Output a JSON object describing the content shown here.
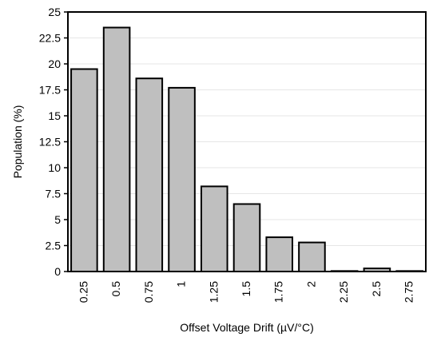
{
  "chart_data": {
    "type": "bar",
    "title": "",
    "xlabel": "Offset Voltage Drift (µV/°C)",
    "ylabel": "Population  (%)",
    "categories": [
      "0.25",
      "0.5",
      "0.75",
      "1",
      "1.25",
      "1.5",
      "1.75",
      "2",
      "2.25",
      "2.5",
      "2.75"
    ],
    "values": [
      19.5,
      23.5,
      18.6,
      17.7,
      8.2,
      6.5,
      3.3,
      2.8,
      0.05,
      0.3,
      0.05
    ],
    "ylim": [
      0,
      25
    ],
    "yticks": [
      "0",
      "2.5",
      "5",
      "7.5",
      "10",
      "12.5",
      "15",
      "17.5",
      "20",
      "22.5",
      "25"
    ],
    "grid": true,
    "colors": {
      "bar_fill": "#bfbfbf",
      "bar_stroke": "#000000",
      "grid": "#e6e6e6"
    }
  }
}
